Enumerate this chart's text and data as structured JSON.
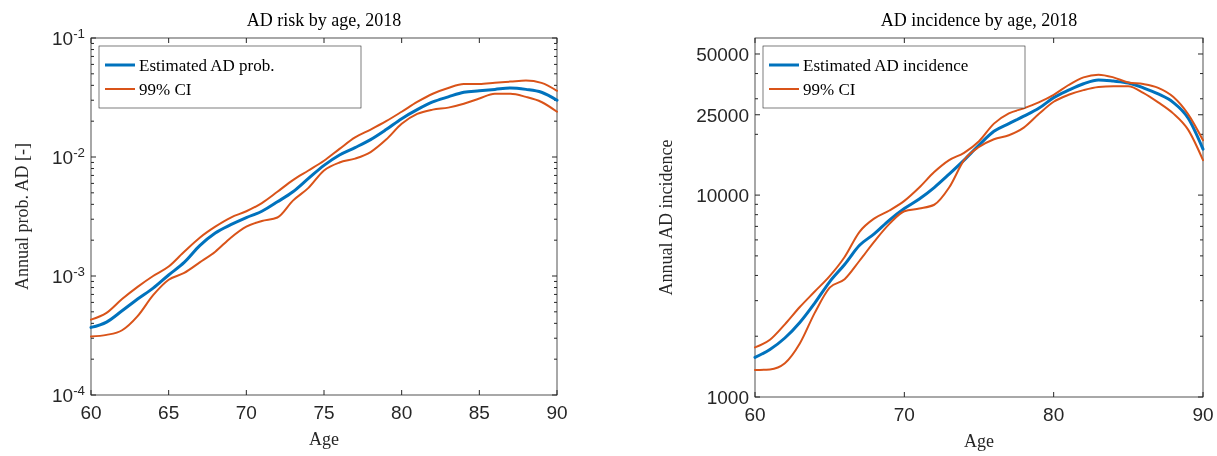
{
  "chart_data": [
    {
      "type": "line",
      "title": "AD risk by age, 2018",
      "xlabel": "Age",
      "ylabel": "Annual prob. AD [-]",
      "log": "y",
      "legend": "top left",
      "grid": false,
      "x": [
        60,
        61,
        62,
        63,
        64,
        65,
        66,
        67,
        68,
        69,
        70,
        71,
        72,
        73,
        74,
        75,
        76,
        77,
        78,
        79,
        80,
        81,
        82,
        83,
        84,
        85,
        86,
        87,
        88,
        89,
        90
      ],
      "xlim": [
        60,
        90
      ],
      "xticks": [
        60,
        65,
        70,
        75,
        80,
        85,
        90
      ],
      "ylim": [
        0.0001,
        0.1
      ],
      "yticks": [
        {
          "value": 0.0001,
          "label": "10$^{-4}$"
        },
        {
          "value": 0.0002,
          "label": null
        },
        {
          "value": 0.0003,
          "label": null
        },
        {
          "value": 0.0004,
          "label": null
        },
        {
          "value": 0.0005,
          "label": null
        },
        {
          "value": 0.0006,
          "label": null
        },
        {
          "value": 0.0007,
          "label": null
        },
        {
          "value": 0.0008,
          "label": null
        },
        {
          "value": 0.0009,
          "label": null
        },
        {
          "value": 0.001,
          "label": "10$^{-3}$"
        },
        {
          "value": 0.002,
          "label": null
        },
        {
          "value": 0.003,
          "label": null
        },
        {
          "value": 0.004,
          "label": null
        },
        {
          "value": 0.005,
          "label": null
        },
        {
          "value": 0.006,
          "label": null
        },
        {
          "value": 0.007,
          "label": null
        },
        {
          "value": 0.008,
          "label": null
        },
        {
          "value": 0.009,
          "label": null
        },
        {
          "value": 0.01,
          "label": "10$^{-2}$"
        },
        {
          "value": 0.02,
          "label": null
        },
        {
          "value": 0.03,
          "label": null
        },
        {
          "value": 0.04,
          "label": null
        },
        {
          "value": 0.05,
          "label": null
        },
        {
          "value": 0.06,
          "label": null
        },
        {
          "value": 0.07,
          "label": null
        },
        {
          "value": 0.08,
          "label": null
        },
        {
          "value": 0.09,
          "label": null
        },
        {
          "value": 0.1,
          "label": "10$^{-1}$"
        }
      ],
      "series": [
        {
          "name": "Estimated AD prob.",
          "color": "#0072bd",
          "values": [
            0.00037,
            0.00041,
            0.00051,
            0.00064,
            0.00079,
            0.00102,
            0.0013,
            0.0018,
            0.0023,
            0.0027,
            0.0031,
            0.0035,
            0.0042,
            0.0051,
            0.0066,
            0.0085,
            0.0104,
            0.012,
            0.014,
            0.017,
            0.021,
            0.025,
            0.029,
            0.032,
            0.035,
            0.036,
            0.037,
            0.038,
            0.037,
            0.035,
            0.03
          ]
        },
        {
          "name": "99% CI",
          "color": "#d95319",
          "values": [
            0.00043,
            0.00049,
            0.00064,
            0.00081,
            0.001,
            0.0012,
            0.0016,
            0.0021,
            0.0026,
            0.0031,
            0.0035,
            0.0041,
            0.0051,
            0.0064,
            0.0077,
            0.0093,
            0.0117,
            0.0146,
            0.017,
            0.02,
            0.024,
            0.029,
            0.034,
            0.038,
            0.041,
            0.041,
            0.042,
            0.043,
            0.044,
            0.042,
            0.036
          ]
        },
        {
          "color": "#d95319",
          "values": [
            0.00031,
            0.00032,
            0.00035,
            0.00046,
            0.00069,
            0.00093,
            0.00106,
            0.0013,
            0.0016,
            0.0021,
            0.0026,
            0.0029,
            0.0031,
            0.0043,
            0.0055,
            0.0077,
            0.009,
            0.0097,
            0.011,
            0.014,
            0.019,
            0.023,
            0.025,
            0.026,
            0.028,
            0.031,
            0.034,
            0.034,
            0.032,
            0.029,
            0.024
          ]
        }
      ]
    },
    {
      "type": "line",
      "title": "AD incidence by age, 2018",
      "xlabel": "Age",
      "ylabel": "Annual AD incidence",
      "log": "y",
      "legend": "top left",
      "grid": false,
      "x": [
        60,
        61,
        62,
        63,
        64,
        65,
        66,
        67,
        68,
        69,
        70,
        71,
        72,
        73,
        74,
        75,
        76,
        77,
        78,
        79,
        80,
        81,
        82,
        83,
        84,
        85,
        86,
        87,
        88,
        89,
        90
      ],
      "xlim": [
        60,
        90
      ],
      "xticks": [
        60,
        70,
        80,
        90
      ],
      "ylim": [
        1000,
        60000
      ],
      "yticks": [
        1000,
        {
          "value": 2000,
          "label": null
        },
        {
          "value": 3000,
          "label": null
        },
        {
          "value": 4000,
          "label": null
        },
        {
          "value": 5000,
          "label": null
        },
        {
          "value": 6000,
          "label": null
        },
        {
          "value": 7000,
          "label": null
        },
        {
          "value": 8000,
          "label": null
        },
        {
          "value": 9000,
          "label": null
        },
        10000,
        {
          "value": 20000,
          "label": null
        },
        25000,
        {
          "value": 30000,
          "label": null
        },
        {
          "value": 40000,
          "label": null
        },
        50000
      ],
      "series": [
        {
          "name": "Estimated AD incidence",
          "color": "#0072bd",
          "values": [
            1570,
            1720,
            1960,
            2340,
            2920,
            3720,
            4530,
            5640,
            6440,
            7520,
            8580,
            9570,
            10900,
            12700,
            14900,
            17700,
            20700,
            22600,
            24600,
            26900,
            30400,
            33100,
            35600,
            37200,
            36700,
            35900,
            34000,
            31700,
            28800,
            24100,
            16900
          ]
        },
        {
          "name": "99% CI",
          "color": "#d95319",
          "values": [
            1760,
            1920,
            2290,
            2790,
            3330,
            3970,
            4940,
            6580,
            7670,
            8390,
            9360,
            10900,
            13000,
            14900,
            16200,
            18500,
            22600,
            25400,
            26900,
            28800,
            31400,
            35100,
            38300,
            39500,
            38300,
            36100,
            35500,
            34000,
            30700,
            25200,
            18700
          ]
        },
        {
          "color": "#d95319",
          "values": [
            1360,
            1370,
            1470,
            1840,
            2610,
            3480,
            3830,
            4730,
            5900,
            7200,
            8320,
            8580,
            8960,
            10900,
            14900,
            17300,
            18900,
            19800,
            21600,
            25200,
            29000,
            31400,
            33100,
            34300,
            34600,
            34600,
            32100,
            28800,
            25400,
            21100,
            14900
          ]
        }
      ]
    }
  ]
}
